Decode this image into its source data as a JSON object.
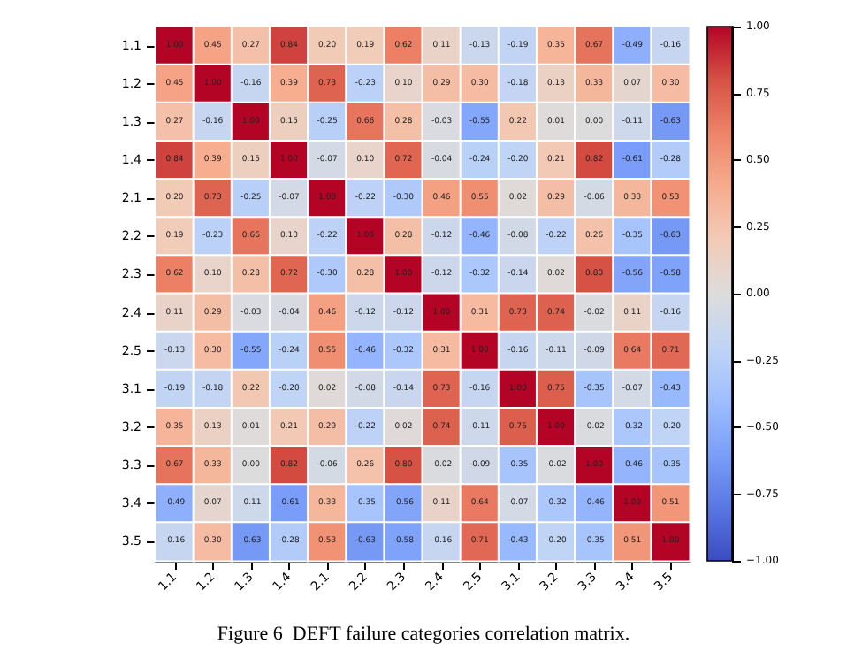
{
  "chart_data": {
    "type": "heatmap",
    "categories": [
      "1.1",
      "1.2",
      "1.3",
      "1.4",
      "2.1",
      "2.2",
      "2.3",
      "2.4",
      "2.5",
      "3.1",
      "3.2",
      "3.3",
      "3.4",
      "3.5"
    ],
    "y_categories": [
      "1.1",
      "1.2",
      "1.3",
      "1.4",
      "2.1",
      "2.2",
      "2.3",
      "2.4",
      "2.5",
      "3.1",
      "3.2",
      "3.3",
      "3.4",
      "3.5"
    ],
    "cells": [
      [
        1.0,
        0.45,
        0.27,
        0.84,
        0.2,
        0.19,
        0.62,
        0.11,
        -0.13,
        -0.19,
        0.35,
        0.67,
        -0.49,
        -0.16
      ],
      [
        0.45,
        1.0,
        -0.16,
        0.39,
        0.73,
        -0.23,
        0.1,
        0.29,
        0.3,
        -0.18,
        0.13,
        0.33,
        0.07,
        0.3
      ],
      [
        0.27,
        -0.16,
        1.0,
        0.15,
        -0.25,
        0.66,
        0.28,
        -0.03,
        -0.55,
        0.22,
        0.01,
        0.0,
        -0.11,
        -0.63
      ],
      [
        0.84,
        0.39,
        0.15,
        1.0,
        -0.07,
        0.1,
        0.72,
        -0.04,
        -0.24,
        -0.2,
        0.21,
        0.82,
        -0.61,
        -0.28
      ],
      [
        0.2,
        0.73,
        -0.25,
        -0.07,
        1.0,
        -0.22,
        -0.3,
        0.46,
        0.55,
        0.02,
        0.29,
        -0.06,
        0.33,
        0.53
      ],
      [
        0.19,
        -0.23,
        0.66,
        0.1,
        -0.22,
        1.0,
        0.28,
        -0.12,
        -0.46,
        -0.08,
        -0.22,
        0.26,
        -0.35,
        -0.63
      ],
      [
        0.62,
        0.1,
        0.28,
        0.72,
        -0.3,
        0.28,
        1.0,
        -0.12,
        -0.32,
        -0.14,
        0.02,
        0.8,
        -0.56,
        -0.58
      ],
      [
        0.11,
        0.29,
        -0.03,
        -0.04,
        0.46,
        -0.12,
        -0.12,
        1.0,
        0.31,
        0.73,
        0.74,
        -0.02,
        0.11,
        -0.16
      ],
      [
        -0.13,
        0.3,
        -0.55,
        -0.24,
        0.55,
        -0.46,
        -0.32,
        0.31,
        1.0,
        -0.16,
        -0.11,
        -0.09,
        0.64,
        0.71
      ],
      [
        -0.19,
        -0.18,
        0.22,
        -0.2,
        0.02,
        -0.08,
        -0.14,
        0.73,
        -0.16,
        1.0,
        0.75,
        -0.35,
        -0.07,
        -0.43
      ],
      [
        0.35,
        0.13,
        0.01,
        0.21,
        0.29,
        -0.22,
        0.02,
        0.74,
        -0.11,
        0.75,
        1.0,
        -0.02,
        -0.32,
        -0.2
      ],
      [
        0.67,
        0.33,
        0.0,
        0.82,
        -0.06,
        0.26,
        0.8,
        -0.02,
        -0.09,
        -0.35,
        -0.02,
        1.0,
        -0.46,
        -0.35
      ],
      [
        -0.49,
        0.07,
        -0.11,
        -0.61,
        0.33,
        -0.35,
        -0.56,
        0.11,
        0.64,
        -0.07,
        -0.32,
        -0.46,
        1.0,
        0.51
      ],
      [
        -0.16,
        0.3,
        -0.63,
        -0.28,
        0.53,
        -0.63,
        -0.58,
        -0.16,
        0.71,
        -0.43,
        -0.2,
        -0.35,
        0.51,
        1.0
      ]
    ],
    "cell_labels": [
      [
        "1.00",
        "0.45",
        "0.27",
        "0.84",
        "0.20",
        "0.19",
        "0.62",
        "0.11",
        "-0.13",
        "-0.19",
        "0.35",
        "0.67",
        "-0.49",
        "-0.16"
      ],
      [
        "0.45",
        "1.00",
        "-0.16",
        "0.39",
        "0.73",
        "-0.23",
        "0.10",
        "0.29",
        "0.30",
        "-0.18",
        "0.13",
        "0.33",
        "0.07",
        "0.30"
      ],
      [
        "0.27",
        "-0.16",
        "1.00",
        "0.15",
        "-0.25",
        "0.66",
        "0.28",
        "-0.03",
        "-0.55",
        "0.22",
        "0.01",
        "0.00",
        "-0.11",
        "-0.63"
      ],
      [
        "0.84",
        "0.39",
        "0.15",
        "1.00",
        "-0.07",
        "0.10",
        "0.72",
        "-0.04",
        "-0.24",
        "-0.20",
        "0.21",
        "0.82",
        "-0.61",
        "-0.28"
      ],
      [
        "0.20",
        "0.73",
        "-0.25",
        "-0.07",
        "1.00",
        "-0.22",
        "-0.30",
        "0.46",
        "0.55",
        "0.02",
        "0.29",
        "-0.06",
        "0.33",
        "0.53"
      ],
      [
        "0.19",
        "-0.23",
        "0.66",
        "0.10",
        "-0.22",
        "1.00",
        "0.28",
        "-0.12",
        "-0.46",
        "-0.08",
        "-0.22",
        "0.26",
        "-0.35",
        "-0.63"
      ],
      [
        "0.62",
        "0.10",
        "0.28",
        "0.72",
        "-0.30",
        "0.28",
        "1.00",
        "-0.12",
        "-0.32",
        "-0.14",
        "0.02",
        "0.80",
        "-0.56",
        "-0.58"
      ],
      [
        "0.11",
        "0.29",
        "-0.03",
        "-0.04",
        "0.46",
        "-0.12",
        "-0.12",
        "1.00",
        "0.31",
        "0.73",
        "0.74",
        "-0.02",
        "0.11",
        "-0.16"
      ],
      [
        "-0.13",
        "0.30",
        "-0.55",
        "-0.24",
        "0.55",
        "-0.46",
        "-0.32",
        "0.31",
        "1.00",
        "-0.16",
        "-0.11",
        "-0.09",
        "0.64",
        "0.71"
      ],
      [
        "-0.19",
        "-0.18",
        "0.22",
        "-0.20",
        "0.02",
        "-0.08",
        "-0.14",
        "0.73",
        "-0.16",
        "1.00",
        "0.75",
        "-0.35",
        "-0.07",
        "-0.43"
      ],
      [
        "0.35",
        "0.13",
        "0.01",
        "0.21",
        "0.29",
        "-0.22",
        "0.02",
        "0.74",
        "-0.11",
        "0.75",
        "1.00",
        "-0.02",
        "-0.32",
        "-0.20"
      ],
      [
        "0.67",
        "0.33",
        "0.00",
        "0.82",
        "-0.06",
        "0.26",
        "0.80",
        "-0.02",
        "-0.09",
        "-0.35",
        "-0.02",
        "1.00",
        "-0.46",
        "-0.35"
      ],
      [
        "-0.49",
        "0.07",
        "-0.11",
        "-0.61",
        "0.33",
        "-0.35",
        "-0.56",
        "0.11",
        "0.64",
        "-0.07",
        "-0.32",
        "-0.46",
        "1.00",
        "0.51"
      ],
      [
        "-0.16",
        "0.30",
        "-0.63",
        "-0.28",
        "0.53",
        "-0.63",
        "-0.58",
        "-0.16",
        "0.71",
        "-0.43",
        "-0.20",
        "-0.35",
        "0.51",
        "1.00"
      ]
    ],
    "data_labels": true,
    "clim": [
      -1,
      1
    ],
    "cticks": [
      {
        "value": -1,
        "label": "−1.00"
      },
      {
        "value": -0.75,
        "label": "−0.75"
      },
      {
        "value": -0.5,
        "label": "−0.50"
      },
      {
        "value": -0.25,
        "label": "−0.25"
      },
      {
        "value": 0,
        "label": "0.00"
      },
      {
        "value": 0.25,
        "label": "0.25"
      },
      {
        "value": 0.5,
        "label": "0.50"
      },
      {
        "value": 0.75,
        "label": "0.75"
      },
      {
        "value": 1,
        "label": "1.00"
      }
    ],
    "annotations": [
      "Figure 6  DEFT failure categories correlation matrix."
    ]
  }
}
